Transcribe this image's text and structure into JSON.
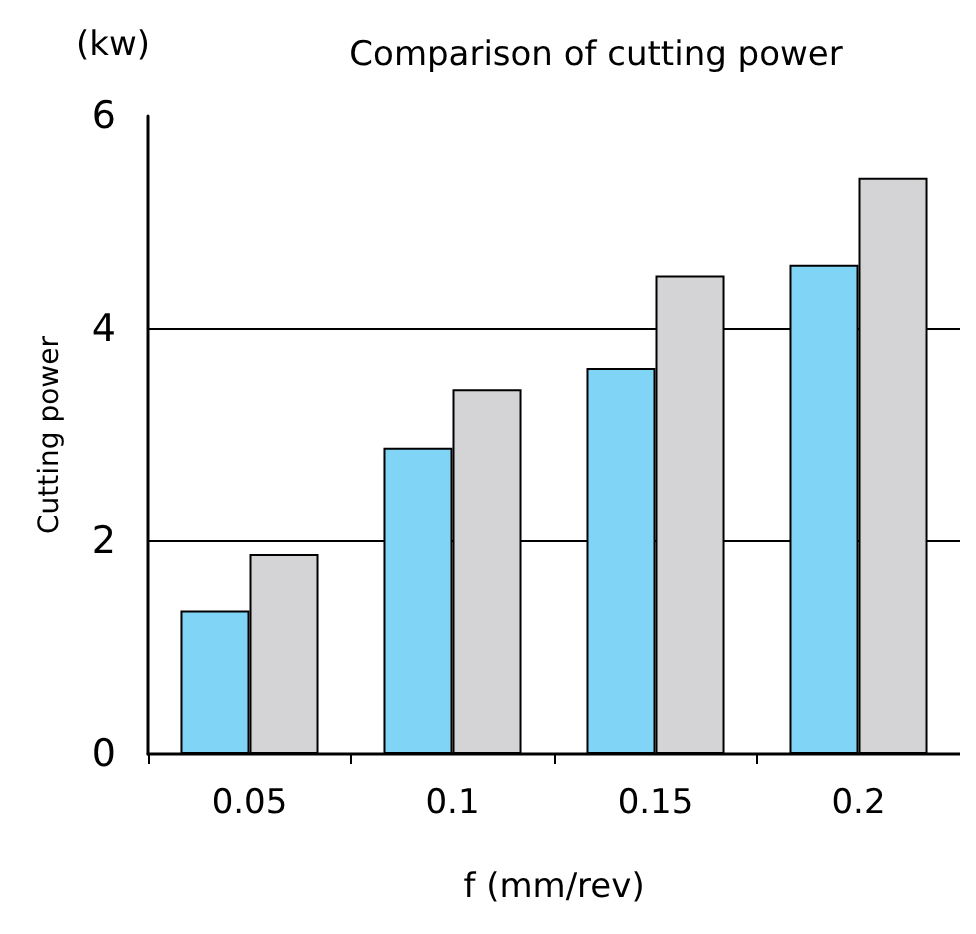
{
  "chart_data": {
    "type": "bar",
    "title": "Comparison of cutting power",
    "xlabel": "f (mm/rev)",
    "ylabel": "Cutting power",
    "annotations": [
      "(kw)"
    ],
    "categories": [
      "0.05",
      "0.1",
      "0.15",
      "0.2"
    ],
    "series": [
      {
        "color": "#80d4f6",
        "values": [
          1.35,
          2.88,
          3.63,
          4.6
        ]
      },
      {
        "color": "#d4d4d6",
        "values": [
          1.88,
          3.43,
          4.5,
          5.42
        ]
      }
    ],
    "ylim": [
      0,
      6
    ],
    "yticks": [
      0,
      2,
      4,
      6
    ],
    "grid": "y"
  }
}
